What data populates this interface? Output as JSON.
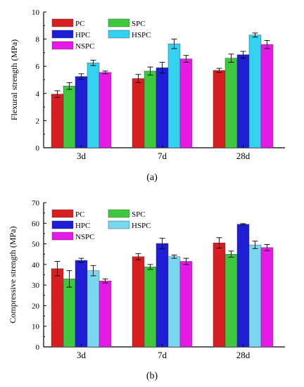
{
  "chart_data": [
    {
      "type": "bar",
      "caption": "(a)",
      "ylabel": "Flexural strength (MPa)",
      "categories": [
        "3d",
        "7d",
        "28d"
      ],
      "ylim": [
        0,
        10
      ],
      "yticks": [
        0,
        2,
        4,
        6,
        8,
        10
      ],
      "legend_position": "top-left",
      "series": [
        {
          "name": "PC",
          "color": "#d81e1e",
          "values": [
            3.95,
            5.1,
            5.7
          ],
          "errors": [
            0.25,
            0.3,
            0.15
          ]
        },
        {
          "name": "SPC",
          "color": "#3ec83e",
          "values": [
            4.55,
            5.65,
            6.6
          ],
          "errors": [
            0.25,
            0.3,
            0.3
          ]
        },
        {
          "name": "HPC",
          "color": "#1e1ed6",
          "values": [
            5.25,
            5.9,
            6.85
          ],
          "errors": [
            0.2,
            0.4,
            0.25
          ]
        },
        {
          "name": "HSPC",
          "color": "#32d2f0",
          "values": [
            6.25,
            7.65,
            8.3
          ],
          "errors": [
            0.2,
            0.35,
            0.15
          ]
        },
        {
          "name": "NSPC",
          "color": "#e619e6",
          "values": [
            5.55,
            6.55,
            7.6
          ],
          "errors": [
            0.1,
            0.25,
            0.3
          ]
        }
      ]
    },
    {
      "type": "bar",
      "caption": "(b)",
      "ylabel": "Compressive strength (MPa)",
      "categories": [
        "3d",
        "7d",
        "28d"
      ],
      "ylim": [
        0,
        70
      ],
      "yticks": [
        0,
        10,
        20,
        30,
        40,
        50,
        60,
        70
      ],
      "legend_position": "top-left",
      "series": [
        {
          "name": "PC",
          "color": "#d81e1e",
          "values": [
            38,
            43.8,
            50.5
          ],
          "errors": [
            3.5,
            1.5,
            2.5
          ]
        },
        {
          "name": "SPC",
          "color": "#3ec83e",
          "values": [
            33,
            38.8,
            45
          ],
          "errors": [
            4,
            1.2,
            1.5
          ]
        },
        {
          "name": "HPC",
          "color": "#1e1ed6",
          "values": [
            42,
            50.2,
            59.5
          ],
          "errors": [
            1,
            2.5,
            0.3
          ]
        },
        {
          "name": "HSPC",
          "color": "#79d7f0",
          "values": [
            37,
            43.8,
            49.5
          ],
          "errors": [
            2.5,
            0.8,
            1.8
          ]
        },
        {
          "name": "NSPC",
          "color": "#e619e6",
          "values": [
            32,
            41.5,
            48.2
          ],
          "errors": [
            1,
            1.5,
            1.5
          ]
        }
      ]
    }
  ]
}
